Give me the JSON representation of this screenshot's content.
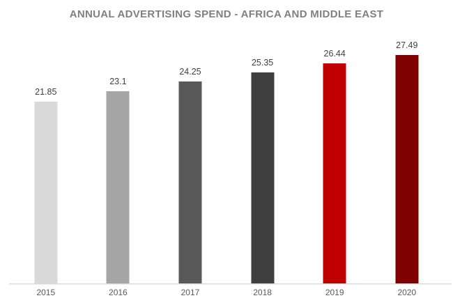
{
  "chart_data": {
    "type": "bar",
    "title": "ANNUAL ADVERTISING SPEND - AFRICA AND MIDDLE EAST",
    "categories": [
      "2015",
      "2016",
      "2017",
      "2018",
      "2019",
      "2020"
    ],
    "values": [
      21.85,
      23.1,
      24.25,
      25.35,
      26.44,
      27.49
    ],
    "value_labels": [
      "21.85",
      "23.1",
      "24.25",
      "25.35",
      "26.44",
      "27.49"
    ],
    "series_colors": [
      "#d9d9d9",
      "#a6a6a6",
      "#595959",
      "#3f3f3f",
      "#c00000",
      "#7f0000"
    ],
    "xlabel": "",
    "ylabel": "",
    "ylim": [
      0,
      30
    ],
    "grid": false,
    "legend": false,
    "value_axis_visible": false,
    "category_axis_visible": true,
    "data_labels_visible": true
  },
  "colors": {
    "background": "#ffffff",
    "title": "#7f7f7f",
    "data_label": "#404040",
    "tick_label": "#595959",
    "axis_line": "#d9d9d9"
  }
}
